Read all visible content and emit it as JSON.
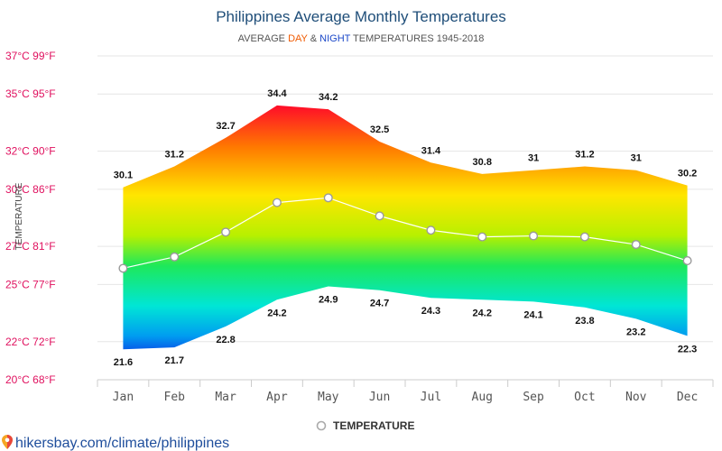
{
  "header": {
    "title": "Philippines Average Monthly Temperatures",
    "subtitle_prefix": "AVERAGE",
    "subtitle_day": "DAY",
    "subtitle_amp": "&",
    "subtitle_night": "NIGHT",
    "subtitle_suffix": "TEMPERATURES 1945-2018"
  },
  "source": {
    "text": "hikersbay.com/climate/philippines"
  },
  "colors": {
    "title": "#1f4e79",
    "day": "#f05a00",
    "night": "#1a47c8",
    "tick_labels": "#e0115f",
    "grid": "#e6e6e6",
    "line": "#ffffff"
  },
  "chart_data": {
    "type": "area",
    "title": "Philippines Average Monthly Temperatures",
    "subtitle": "AVERAGE DAY & NIGHT TEMPERATURES 1945-2018",
    "ylabel": "TEMPERATURE",
    "xlabel": "",
    "categories": [
      "Jan",
      "Feb",
      "Mar",
      "Apr",
      "May",
      "Jun",
      "Jul",
      "Aug",
      "Sep",
      "Oct",
      "Nov",
      "Dec"
    ],
    "y_ticks": [
      "20°C 68°F",
      "22°C 72°F",
      "25°C 77°F",
      "27°C 81°F",
      "30°C 86°F",
      "32°C 90°F",
      "35°C 95°F",
      "37°C 99°F"
    ],
    "y_tick_values": [
      20,
      22,
      25,
      27,
      30,
      32,
      35,
      37
    ],
    "ylim": [
      20,
      37
    ],
    "series": [
      {
        "name": "DAY",
        "values": [
          30.1,
          31.2,
          32.7,
          34.4,
          34.2,
          32.5,
          31.4,
          30.8,
          31,
          31.2,
          31,
          30.2
        ]
      },
      {
        "name": "NIGHT",
        "values": [
          21.6,
          21.7,
          22.8,
          24.2,
          24.9,
          24.7,
          24.3,
          24.2,
          24.1,
          23.8,
          23.2,
          22.3
        ]
      },
      {
        "name": "TEMPERATURE",
        "values": [
          25.85,
          26.45,
          27.75,
          29.3,
          29.55,
          28.6,
          27.85,
          27.5,
          27.55,
          27.5,
          27.1,
          26.25
        ]
      }
    ],
    "legend": [
      "TEMPERATURE"
    ],
    "legend_position": "bottom-center",
    "grid": true
  }
}
